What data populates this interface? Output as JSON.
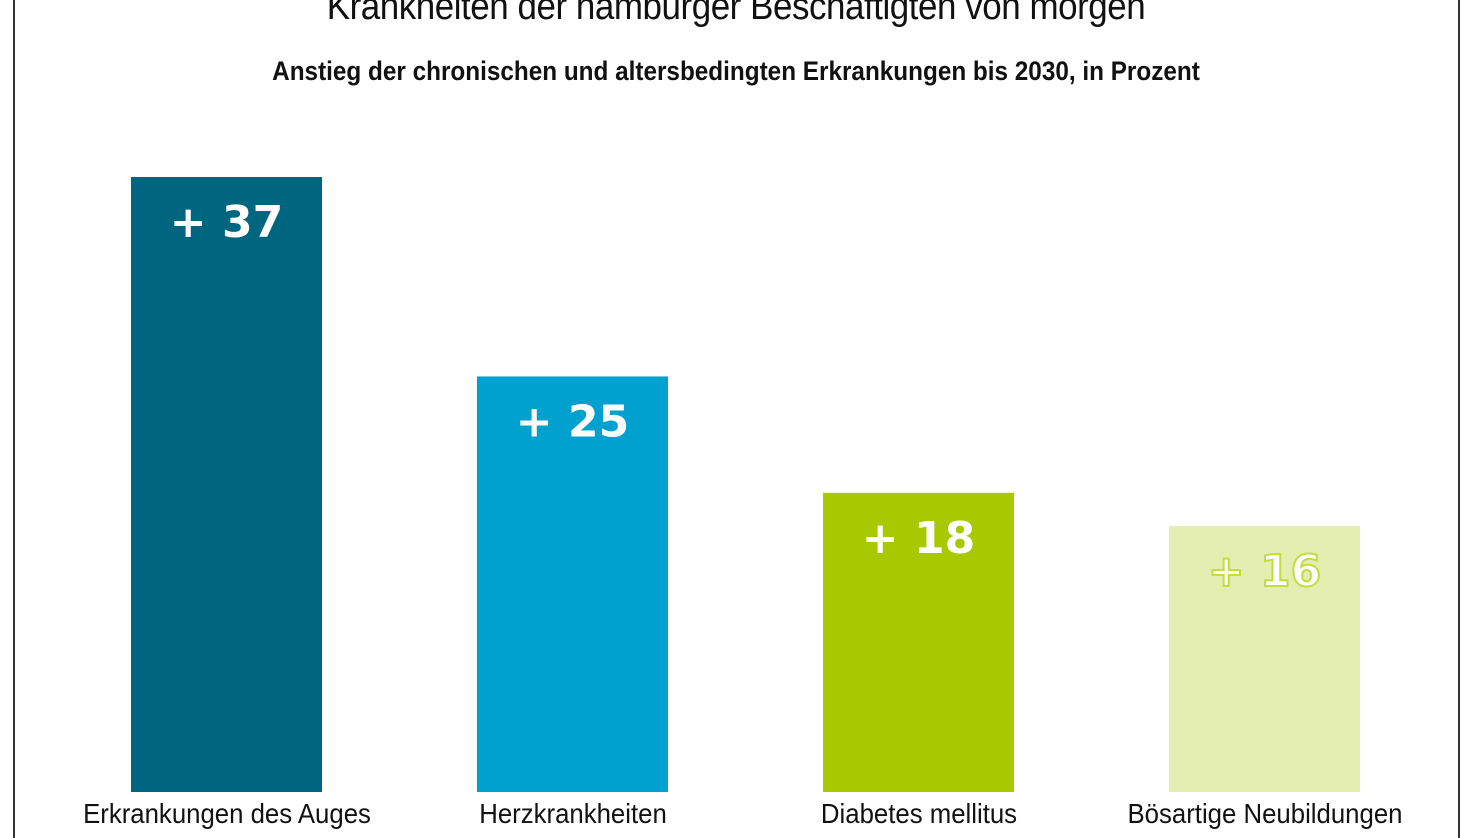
{
  "chart_data": {
    "type": "bar",
    "title": "Krankheiten der hamburger Beschäftigten von morgen",
    "subtitle": "Anstieg der chronischen und altersbedingten Erkrankungen bis 2030, in Prozent",
    "categories": [
      "Erkrankungen des Auges",
      "Herzkrankheiten",
      "Diabetes mellitus",
      "Bösartige Neubildungen"
    ],
    "values": [
      37,
      25,
      18,
      16
    ],
    "data_labels": [
      "+ 37",
      "+ 25",
      "+ 18",
      "+ 16"
    ],
    "colors": [
      "#006680",
      "#00a0cf",
      "#a8c800",
      "#e4eeb0"
    ],
    "label_colors": [
      "#ffffff",
      "#ffffff",
      "#ffffff",
      "#ffffff"
    ],
    "ylim": [
      0,
      37
    ],
    "grid": false,
    "axes_visible": false
  }
}
